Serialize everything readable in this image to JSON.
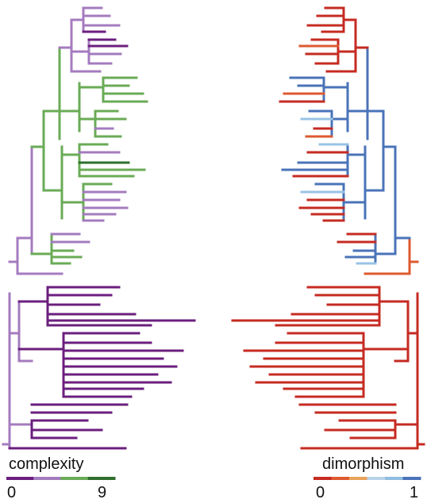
{
  "legends": {
    "left": {
      "title": "complexity",
      "min_label": "0",
      "max_label": "9",
      "colors": [
        "#6b1f7e",
        "#a47bbf",
        "#6aab56",
        "#2f6f2e"
      ]
    },
    "right": {
      "title": "dimorphism",
      "min_label": "0",
      "max_label": "1",
      "colors": [
        "#c62b22",
        "#de5a30",
        "#e9a35a",
        "#b8d3e8",
        "#8fbde0",
        "#4a73b8"
      ]
    }
  },
  "colors": {
    "dark_purple": "#6b1f7e",
    "light_purple": "#a47bbf",
    "green": "#6aab56",
    "dark_green": "#2f6f2e",
    "red": "#c62b22",
    "orange": "#de5a30",
    "light_blue": "#99c3e4",
    "blue": "#4a73b8"
  }
}
